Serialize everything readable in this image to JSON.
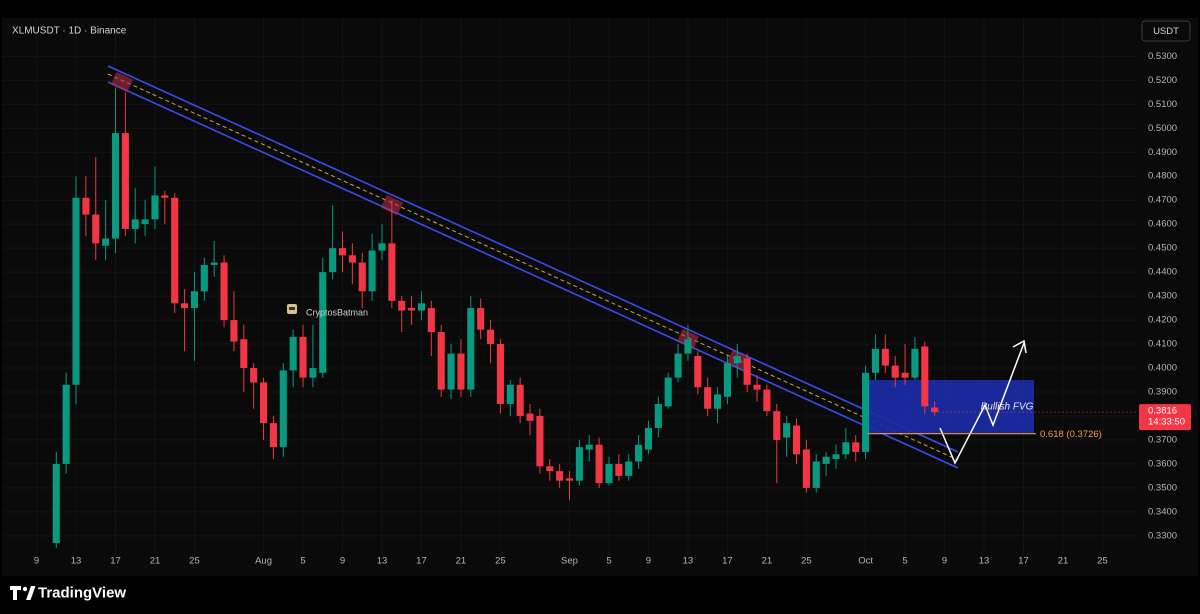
{
  "chart_data": {
    "type": "candlestick",
    "title": "XLMUSDT · 1D · Binance",
    "currency": "USDT",
    "categories": [
      null,
      null,
      null,
      "9",
      null,
      null,
      null,
      "13",
      null,
      null,
      null,
      "17",
      null,
      null,
      null,
      "21",
      null,
      null,
      null,
      "25",
      null,
      null,
      null,
      null,
      null,
      null,
      "Aug",
      null,
      null,
      null,
      "5",
      null,
      null,
      null,
      "9",
      null,
      null,
      null,
      "13",
      null,
      null,
      null,
      "17",
      null,
      null,
      null,
      "21",
      null,
      null,
      null,
      "25",
      null,
      null,
      null,
      null,
      null,
      null,
      "Sep",
      null,
      null,
      null,
      "5",
      null,
      null,
      null,
      "9",
      null,
      null,
      null,
      "13",
      null,
      null,
      null,
      "17",
      null,
      null,
      null,
      "21",
      null,
      null,
      null,
      "25",
      null,
      null,
      null,
      null,
      null,
      "Oct",
      null,
      null,
      null,
      "5",
      null,
      null,
      null,
      "9",
      null,
      null,
      null,
      "13",
      null,
      null,
      null,
      "17",
      null,
      null,
      null,
      "21",
      null,
      null,
      null,
      "25",
      null,
      null,
      null
    ],
    "open": [
      null,
      null,
      null,
      null,
      null,
      0.327,
      0.36,
      0.393,
      0.471,
      0.464,
      0.451,
      0.454,
      0.498,
      0.458,
      0.46,
      0.462,
      0.472,
      0.471,
      0.427,
      0.425,
      0.432,
      0.443,
      0.444,
      0.42,
      0.412,
      0.4,
      0.394,
      0.377,
      0.367,
      0.399,
      0.413,
      0.396,
      0.398,
      0.44,
      0.45,
      0.447,
      0.444,
      0.432,
      0.449,
      0.452,
      0.428,
      0.425,
      0.424,
      0.425,
      0.415,
      0.391,
      0.406,
      0.391,
      0.425,
      0.416,
      0.41,
      0.385,
      0.393,
      0.381,
      0.38,
      0.359,
      0.357,
      0.354,
      0.353,
      0.366,
      0.368,
      0.352,
      0.36,
      0.355,
      0.361,
      0.366,
      0.375,
      0.384,
      0.396,
      0.406,
      0.405,
      0.392,
      0.383,
      0.388,
      0.402,
      0.404,
      0.393,
      0.391,
      0.382,
      0.371,
      0.376,
      0.366,
      0.35,
      0.36,
      0.362,
      0.364,
      0.369,
      0.365,
      0.398,
      0.408,
      0.401,
      0.398,
      0.396,
      0.409,
      0.3835,
      null,
      null,
      null,
      null,
      null,
      null,
      null,
      null,
      null,
      null,
      null,
      null,
      null,
      null,
      null,
      null,
      null,
      null,
      null,
      null
    ],
    "high": [
      null,
      null,
      null,
      null,
      null,
      0.365,
      0.398,
      0.48,
      0.48,
      0.488,
      0.47,
      0.517,
      0.515,
      0.475,
      0.47,
      0.484,
      0.474,
      0.473,
      0.433,
      0.44,
      0.446,
      0.453,
      0.447,
      0.432,
      0.418,
      0.402,
      0.396,
      0.38,
      0.402,
      0.416,
      0.418,
      0.418,
      0.446,
      0.468,
      0.457,
      0.452,
      0.448,
      0.456,
      0.46,
      0.47,
      0.43,
      0.43,
      0.432,
      0.428,
      0.418,
      0.41,
      0.412,
      0.43,
      0.429,
      0.42,
      0.412,
      0.395,
      0.396,
      0.385,
      0.383,
      0.362,
      0.36,
      0.357,
      0.37,
      0.372,
      0.371,
      0.363,
      0.364,
      0.364,
      0.372,
      0.378,
      0.388,
      0.398,
      0.41,
      0.418,
      0.407,
      0.396,
      0.392,
      0.405,
      0.41,
      0.406,
      0.397,
      0.393,
      0.385,
      0.38,
      0.379,
      0.37,
      0.364,
      0.365,
      0.368,
      0.375,
      0.372,
      0.401,
      0.414,
      0.414,
      0.405,
      0.41,
      0.413,
      0.411,
      0.386,
      null,
      null,
      null,
      null,
      null,
      null,
      null,
      null,
      null,
      null,
      null,
      null,
      null,
      null,
      null,
      null,
      null,
      null,
      null,
      null
    ],
    "low": [
      null,
      null,
      null,
      null,
      null,
      0.325,
      0.356,
      0.385,
      0.455,
      0.445,
      0.445,
      0.448,
      0.455,
      0.452,
      0.455,
      0.458,
      0.46,
      0.423,
      0.407,
      0.403,
      0.428,
      0.438,
      0.417,
      0.407,
      0.39,
      0.383,
      0.37,
      0.362,
      0.363,
      0.392,
      0.392,
      0.392,
      0.396,
      0.437,
      0.44,
      0.435,
      0.425,
      0.428,
      0.445,
      0.425,
      0.415,
      0.418,
      0.42,
      0.405,
      0.388,
      0.387,
      0.388,
      0.388,
      0.412,
      0.402,
      0.381,
      0.38,
      0.377,
      0.372,
      0.356,
      0.353,
      0.35,
      0.345,
      0.351,
      0.361,
      0.35,
      0.351,
      0.353,
      0.353,
      0.358,
      0.364,
      0.371,
      0.383,
      0.394,
      0.403,
      0.389,
      0.38,
      0.377,
      0.385,
      0.396,
      0.39,
      0.386,
      0.38,
      0.352,
      0.363,
      0.36,
      0.348,
      0.348,
      0.355,
      0.358,
      0.362,
      0.361,
      0.362,
      0.395,
      0.398,
      0.392,
      0.393,
      0.395,
      0.381,
      0.38,
      null,
      null,
      null,
      null,
      null,
      null,
      null,
      null,
      null,
      null,
      null,
      null,
      null,
      null,
      null,
      null,
      null,
      null,
      null,
      null
    ],
    "close": [
      null,
      null,
      null,
      null,
      null,
      0.36,
      0.393,
      0.471,
      0.464,
      0.452,
      0.454,
      0.498,
      0.458,
      0.462,
      0.462,
      0.472,
      0.471,
      0.427,
      0.425,
      0.432,
      0.443,
      0.444,
      0.42,
      0.411,
      0.4,
      0.394,
      0.377,
      0.367,
      0.399,
      0.413,
      0.396,
      0.4,
      0.44,
      0.45,
      0.447,
      0.444,
      0.432,
      0.449,
      0.452,
      0.428,
      0.424,
      0.424,
      0.427,
      0.415,
      0.391,
      0.406,
      0.391,
      0.425,
      0.416,
      0.41,
      0.385,
      0.393,
      0.38,
      0.378,
      0.359,
      0.357,
      0.353,
      0.353,
      0.367,
      0.368,
      0.352,
      0.36,
      0.355,
      0.361,
      0.368,
      0.375,
      0.385,
      0.396,
      0.406,
      0.412,
      0.392,
      0.383,
      0.389,
      0.402,
      0.405,
      0.393,
      0.391,
      0.382,
      0.37,
      0.377,
      0.364,
      0.35,
      0.361,
      0.363,
      0.364,
      0.369,
      0.365,
      0.398,
      0.408,
      0.401,
      0.396,
      0.396,
      0.408,
      0.384,
      0.3816,
      null,
      null,
      null,
      null,
      null,
      null,
      null,
      null,
      null,
      null,
      null,
      null,
      null,
      null,
      null,
      null,
      null,
      null,
      null,
      null
    ],
    "up_color": "#089981",
    "down_color": "#f23645",
    "ylim": [
      0.322,
      0.546
    ],
    "yticks": [
      {
        "value": 0.33,
        "label": "0.3300"
      },
      {
        "value": 0.34,
        "label": "0.3400"
      },
      {
        "value": 0.35,
        "label": "0.3500"
      },
      {
        "value": 0.36,
        "label": "0.3600"
      },
      {
        "value": 0.37,
        "label": "0.3700"
      },
      {
        "value": 0.38,
        "label": "0.3800"
      },
      {
        "value": 0.39,
        "label": "0.3900"
      },
      {
        "value": 0.4,
        "label": "0.4000"
      },
      {
        "value": 0.41,
        "label": "0.4100"
      },
      {
        "value": 0.42,
        "label": "0.4200"
      },
      {
        "value": 0.43,
        "label": "0.4300"
      },
      {
        "value": 0.44,
        "label": "0.4400"
      },
      {
        "value": 0.45,
        "label": "0.4500"
      },
      {
        "value": 0.46,
        "label": "0.4600"
      },
      {
        "value": 0.47,
        "label": "0.4700"
      },
      {
        "value": 0.48,
        "label": "0.4800"
      },
      {
        "value": 0.49,
        "label": "0.4900"
      },
      {
        "value": 0.5,
        "label": "0.5000"
      },
      {
        "value": 0.51,
        "label": "0.5100"
      },
      {
        "value": 0.52,
        "label": "0.5200"
      },
      {
        "value": 0.53,
        "label": "0.5300"
      }
    ],
    "grid": true,
    "last_price": 0.3816,
    "countdown": "14:33:50",
    "fib_level": {
      "value": 0.3726,
      "label": "0.618 (0.3726)"
    },
    "zone_label": "Bullish FVG",
    "watermark": "CryptosBatman"
  },
  "footer": {
    "brand": "TradingView"
  }
}
